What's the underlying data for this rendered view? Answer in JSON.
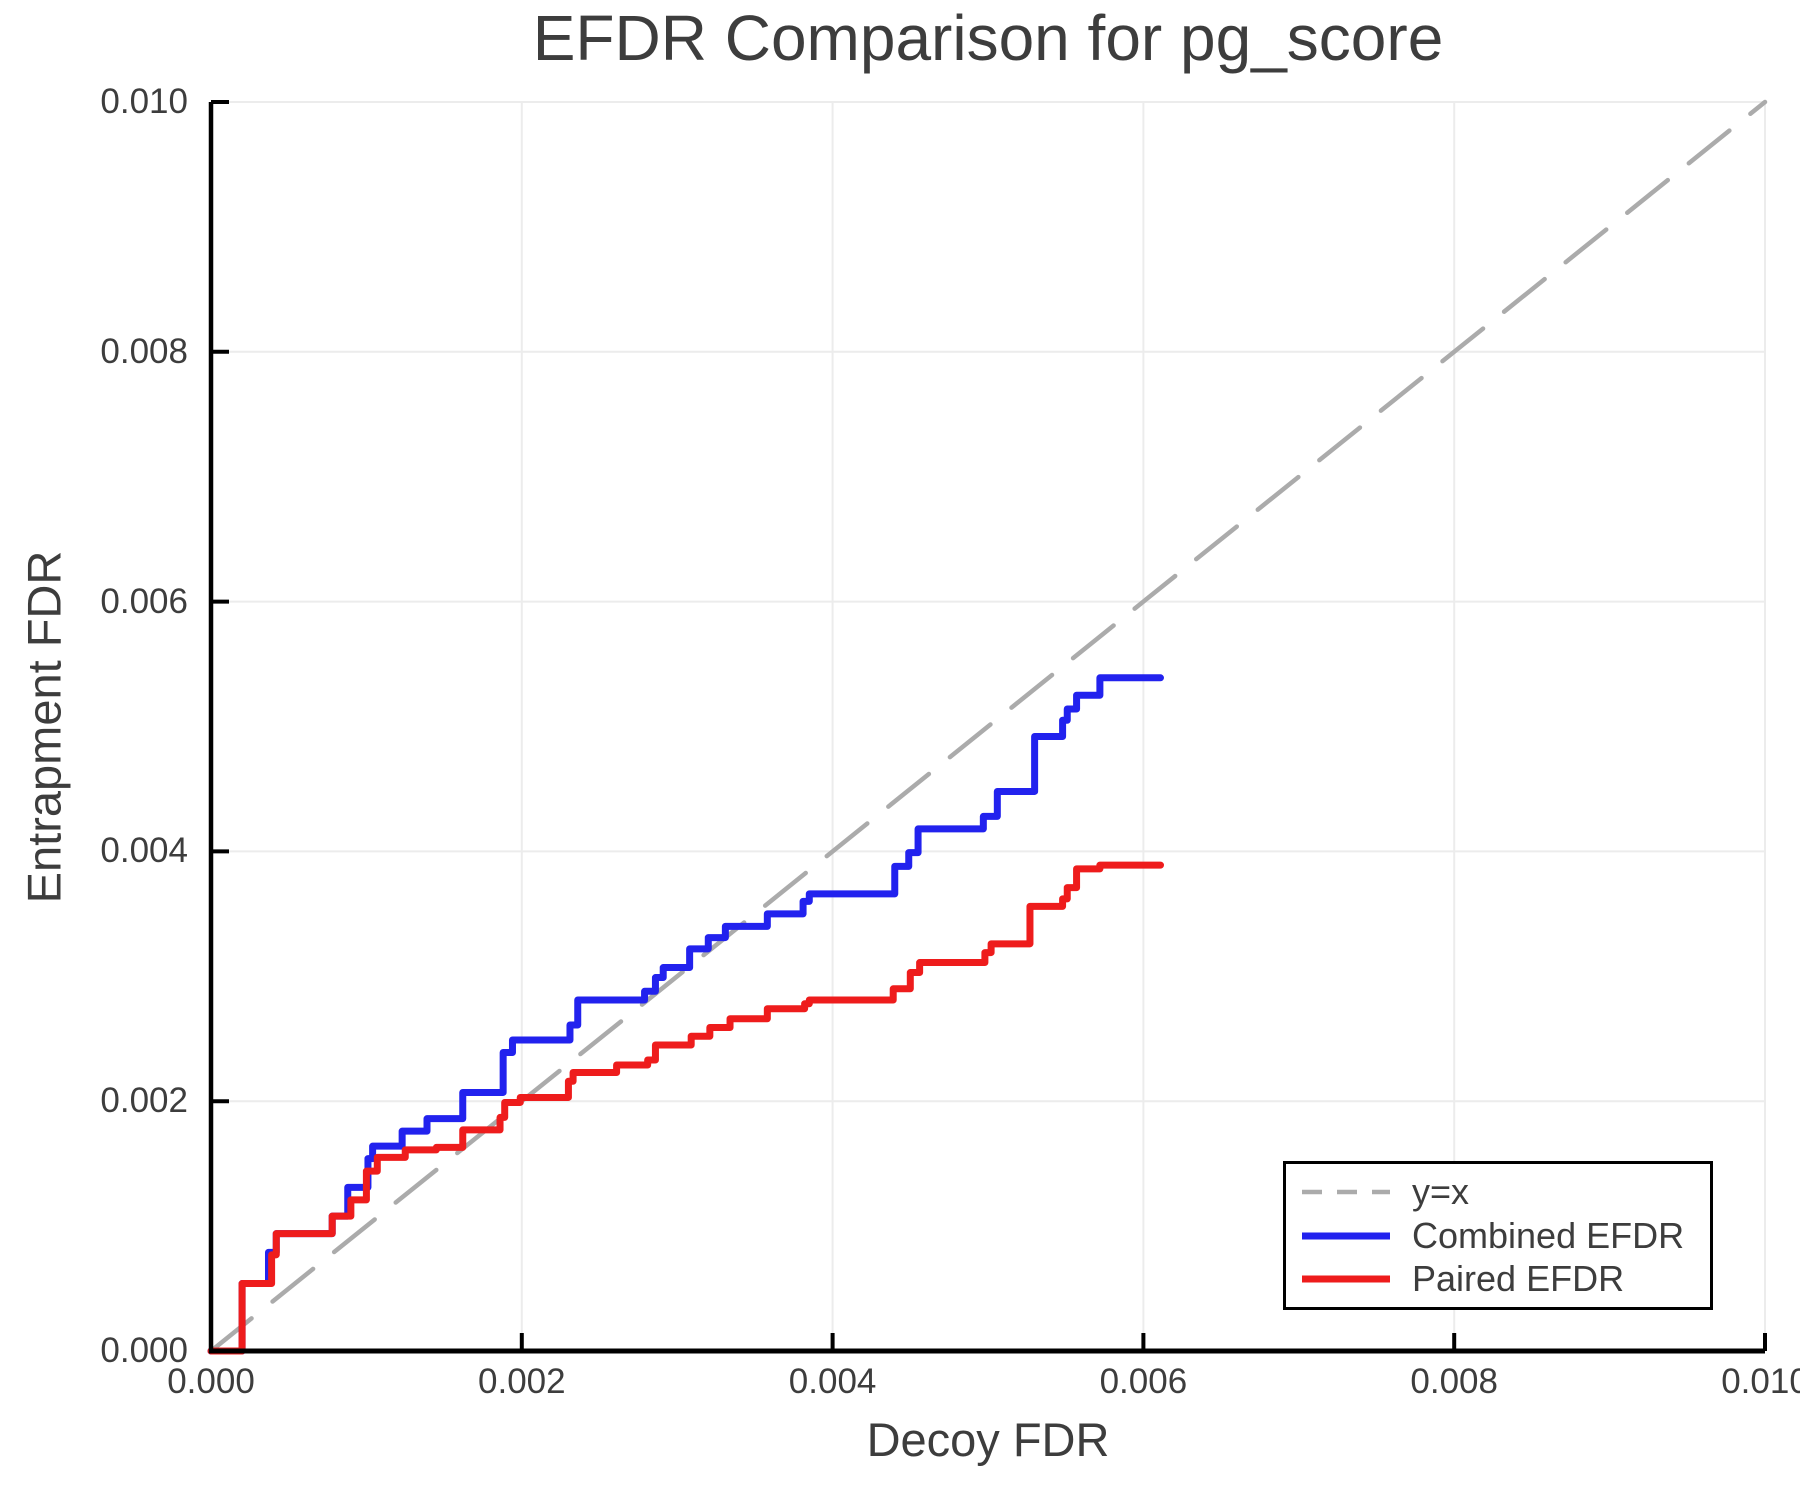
{
  "chart_data": {
    "type": "line",
    "title": "EFDR Comparison for pg_score",
    "xlabel": "Decoy FDR",
    "ylabel": "Entrapment FDR",
    "xlim": [
      0.0,
      0.01
    ],
    "ylim": [
      0.0,
      0.01
    ],
    "x_tick_values": [
      0.0,
      0.002,
      0.004,
      0.006,
      0.008,
      0.01
    ],
    "x_tick_labels": [
      "0.000",
      "0.002",
      "0.004",
      "0.006",
      "0.008",
      "0.010"
    ],
    "y_tick_values": [
      0.0,
      0.002,
      0.004,
      0.006,
      0.008,
      0.01
    ],
    "y_tick_labels": [
      "0.000",
      "0.002",
      "0.004",
      "0.006",
      "0.008",
      "0.010"
    ],
    "grid": true,
    "legend_position": "bottom-right",
    "colors": {
      "identity_line": "#ababab",
      "combined_efdr": "#2222ee",
      "paired_efdr": "#ee1c1c",
      "grid": "#ececec",
      "axis": "#000000",
      "text": "#3d3d3d"
    },
    "series": [
      {
        "name": "y=x",
        "style": "dashed",
        "step": false,
        "color": "#ababab",
        "points": [
          [
            0.0,
            0.0
          ],
          [
            0.01,
            0.01
          ]
        ]
      },
      {
        "name": "Combined EFDR",
        "style": "solid",
        "step": true,
        "color": "#2222ee",
        "points": [
          [
            0.0,
            0.0
          ],
          [
            0.0002,
            0.00054
          ],
          [
            0.00037,
            0.00079
          ],
          [
            0.00042,
            0.00094
          ],
          [
            0.00078,
            0.00108
          ],
          [
            0.00088,
            0.00131
          ],
          [
            0.00101,
            0.00154
          ],
          [
            0.00104,
            0.00164
          ],
          [
            0.00123,
            0.00176
          ],
          [
            0.00139,
            0.00186
          ],
          [
            0.00162,
            0.00207
          ],
          [
            0.00188,
            0.00239
          ],
          [
            0.00194,
            0.00249
          ],
          [
            0.00231,
            0.00261
          ],
          [
            0.00236,
            0.00281
          ],
          [
            0.00279,
            0.00288
          ],
          [
            0.00286,
            0.00299
          ],
          [
            0.00291,
            0.00307
          ],
          [
            0.00308,
            0.00322
          ],
          [
            0.0032,
            0.00331
          ],
          [
            0.00331,
            0.0034
          ],
          [
            0.00358,
            0.0035
          ],
          [
            0.00381,
            0.0036
          ],
          [
            0.00385,
            0.00366
          ],
          [
            0.0044,
            0.00388
          ],
          [
            0.00449,
            0.00399
          ],
          [
            0.00455,
            0.00418
          ],
          [
            0.00497,
            0.00428
          ],
          [
            0.00506,
            0.00448
          ],
          [
            0.0053,
            0.00492
          ],
          [
            0.00548,
            0.00505
          ],
          [
            0.00551,
            0.00514
          ],
          [
            0.00557,
            0.00525
          ],
          [
            0.00572,
            0.00539
          ],
          [
            0.00611,
            0.00539
          ]
        ]
      },
      {
        "name": "Paired EFDR",
        "style": "solid",
        "step": true,
        "color": "#ee1c1c",
        "points": [
          [
            0.0,
            0.0
          ],
          [
            0.0002,
            0.00054
          ],
          [
            0.00039,
            0.00077
          ],
          [
            0.00042,
            0.00094
          ],
          [
            0.00078,
            0.00108
          ],
          [
            0.0009,
            0.00121
          ],
          [
            0.001,
            0.00144
          ],
          [
            0.00107,
            0.00155
          ],
          [
            0.00125,
            0.00161
          ],
          [
            0.00145,
            0.00163
          ],
          [
            0.00162,
            0.00177
          ],
          [
            0.00186,
            0.00187
          ],
          [
            0.00189,
            0.00199
          ],
          [
            0.00199,
            0.00203
          ],
          [
            0.0023,
            0.00216
          ],
          [
            0.00233,
            0.00223
          ],
          [
            0.00261,
            0.00229
          ],
          [
            0.00281,
            0.00233
          ],
          [
            0.00286,
            0.00245
          ],
          [
            0.00309,
            0.00252
          ],
          [
            0.00321,
            0.00259
          ],
          [
            0.00334,
            0.00266
          ],
          [
            0.00358,
            0.00274
          ],
          [
            0.00382,
            0.00278
          ],
          [
            0.00385,
            0.00281
          ],
          [
            0.00439,
            0.0029
          ],
          [
            0.0045,
            0.00303
          ],
          [
            0.00456,
            0.00311
          ],
          [
            0.00498,
            0.00319
          ],
          [
            0.00502,
            0.00326
          ],
          [
            0.00527,
            0.00356
          ],
          [
            0.00548,
            0.00362
          ],
          [
            0.00551,
            0.00371
          ],
          [
            0.00557,
            0.00386
          ],
          [
            0.00572,
            0.00389
          ],
          [
            0.00611,
            0.00389
          ]
        ]
      }
    ]
  }
}
